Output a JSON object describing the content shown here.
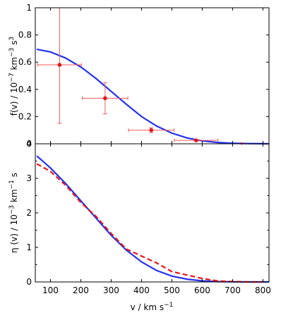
{
  "chart_data": [
    {
      "type": "scatter",
      "title": "",
      "xlabel": "",
      "ylabel": "f(v) / 10⁻⁷ km⁻³ s³",
      "ylabel_parts": {
        "base": "f(v) / 10",
        "exp1": "−7",
        "mid": " km",
        "exp2": "−3",
        "mid2": " s",
        "exp3": "3"
      },
      "xlim": [
        50,
        820
      ],
      "ylim": [
        0,
        1
      ],
      "x_ticks": [],
      "y_ticks": [
        0,
        0.2,
        0.4,
        0.6,
        0.8,
        1
      ],
      "y_tick_labels": [
        "0",
        "0.2",
        "0.4",
        "0.6",
        "0.8",
        "1"
      ],
      "grid": false,
      "points": [
        {
          "x": 130,
          "y": 0.58,
          "xerr": 72,
          "yerr_low": 0.43,
          "yerr_high": 0.42
        },
        {
          "x": 280,
          "y": 0.335,
          "xerr": 75,
          "yerr_low": 0.115,
          "yerr_high": 0.115
        },
        {
          "x": 432,
          "y": 0.1,
          "xerr": 75,
          "yerr_low": 0.018,
          "yerr_high": 0.018
        },
        {
          "x": 580,
          "y": 0.025,
          "xerr": 72,
          "yerr_low": 0.006,
          "yerr_high": 0.006
        },
        {
          "x": 730,
          "y": 0.002,
          "xerr": 0,
          "yerr_low": 0,
          "yerr_high": 0
        }
      ],
      "curve": {
        "x": [
          55,
          100,
          150,
          200,
          250,
          300,
          350,
          400,
          450,
          500,
          550,
          600,
          650,
          700,
          750,
          800,
          820
        ],
        "y": [
          0.695,
          0.675,
          0.63,
          0.565,
          0.48,
          0.385,
          0.29,
          0.2,
          0.13,
          0.078,
          0.043,
          0.022,
          0.01,
          0.004,
          0.0015,
          0.0005,
          0.0002
        ]
      },
      "colors": {
        "curve": "#2433ee",
        "points": "#e8141a",
        "errorbars": "#ef5a5a"
      }
    },
    {
      "type": "line",
      "title": "",
      "xlabel": "v / km s⁻¹",
      "xlabel_parts": {
        "base": "v / km s",
        "exp": "−1"
      },
      "ylabel": "η (v) / 10⁻³ km⁻¹ s",
      "ylabel_parts": {
        "base": "η (v) / 10",
        "exp1": "−3",
        "mid": " km",
        "exp2": "−1",
        "mid2": " s"
      },
      "xlim": [
        50,
        820
      ],
      "ylim": [
        0,
        4
      ],
      "x_ticks": [
        100,
        200,
        300,
        400,
        500,
        600,
        700,
        800
      ],
      "x_tick_labels": [
        "100",
        "200",
        "300",
        "400",
        "500",
        "600",
        "700",
        "800"
      ],
      "y_ticks": [
        0,
        0.5,
        1,
        1.5,
        2,
        2.5,
        3,
        3.5,
        4
      ],
      "y_tick_labels": [
        "0",
        "",
        "1",
        "",
        "2",
        "",
        "3",
        "",
        "4"
      ],
      "grid": false,
      "series": [
        {
          "style": "solid",
          "color": "#2433ee",
          "x": [
            55,
            100,
            150,
            200,
            250,
            300,
            350,
            400,
            450,
            500,
            550,
            600,
            650,
            700,
            750,
            800,
            820
          ],
          "y": [
            3.65,
            3.3,
            2.85,
            2.35,
            1.85,
            1.35,
            0.92,
            0.58,
            0.33,
            0.17,
            0.08,
            0.03,
            0.01,
            0.004,
            0.001,
            0.0003,
            0.0002
          ]
        },
        {
          "style": "dashed",
          "color": "#e8141a",
          "x": [
            55,
            100,
            150,
            200,
            250,
            300,
            350,
            400,
            450,
            500,
            550,
            600,
            650,
            700,
            750,
            800
          ],
          "y": [
            3.42,
            3.2,
            2.8,
            2.3,
            1.9,
            1.4,
            0.95,
            0.75,
            0.55,
            0.3,
            0.2,
            0.1,
            0.03,
            0.01,
            0.0,
            0.0
          ]
        }
      ]
    }
  ]
}
